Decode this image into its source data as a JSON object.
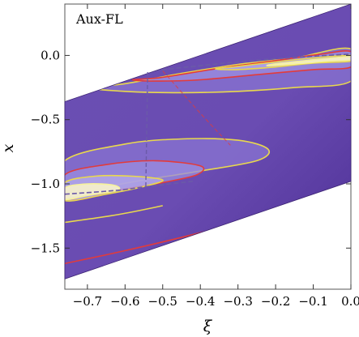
{
  "chart_data": {
    "type": "contour",
    "panel_label": "Aux-FL",
    "xlabel": "ξ",
    "ylabel": "x",
    "xlim": [
      -0.76,
      0.0
    ],
    "ylim": [
      -1.82,
      0.4
    ],
    "x_ticks": [
      "−0.7",
      "−0.6",
      "−0.5",
      "−0.4",
      "−0.3",
      "−0.2",
      "−0.1",
      "0.0"
    ],
    "x_tick_values": [
      -0.7,
      -0.6,
      -0.5,
      -0.4,
      -0.3,
      -0.2,
      -0.1,
      0.0
    ],
    "y_ticks": [
      "0.0",
      "−0.5",
      "−1.0",
      "−1.5"
    ],
    "y_tick_values": [
      0.0,
      -0.5,
      -1.0,
      -1.5
    ],
    "domain_shift": 0.4,
    "ridges": [
      {
        "name": "upper",
        "axis": [
          [
            -0.56,
            -0.13
          ],
          [
            -0.3,
            -0.05
          ],
          [
            -0.12,
            -0.01
          ],
          [
            0.0,
            0.01
          ]
        ],
        "contours": [
          {
            "color": "#e9d84d",
            "points": [
              [
                -0.6,
                -0.22
              ],
              [
                -0.45,
                -0.14
              ],
              [
                -0.3,
                -0.07
              ],
              [
                -0.15,
                -0.02
              ],
              [
                0.0,
                0.05
              ],
              [
                0.0,
                -0.2
              ],
              [
                -0.15,
                -0.25
              ],
              [
                -0.3,
                -0.28
              ],
              [
                -0.45,
                -0.29
              ],
              [
                -0.6,
                -0.28
              ],
              [
                -0.7,
                -0.25
              ]
            ]
          },
          {
            "color": "#e23b3b",
            "points": [
              [
                -0.5,
                -0.17
              ],
              [
                -0.35,
                -0.1
              ],
              [
                -0.2,
                -0.04
              ],
              [
                -0.08,
                0.01
              ],
              [
                0.0,
                0.03
              ],
              [
                0.0,
                -0.09
              ],
              [
                -0.1,
                -0.11
              ],
              [
                -0.25,
                -0.15
              ],
              [
                -0.4,
                -0.19
              ],
              [
                -0.52,
                -0.2
              ],
              [
                -0.58,
                -0.19
              ]
            ]
          },
          {
            "color": "#e9d84d",
            "points": [
              [
                -0.3,
                -0.085
              ],
              [
                -0.2,
                -0.05
              ],
              [
                -0.1,
                -0.02
              ],
              [
                0.0,
                0.0
              ],
              [
                0.0,
                -0.045
              ],
              [
                -0.1,
                -0.06
              ],
              [
                -0.2,
                -0.09
              ],
              [
                -0.3,
                -0.11
              ],
              [
                -0.36,
                -0.105
              ]
            ]
          },
          {
            "color": "#f6f29a",
            "points": [
              [
                -0.2,
                -0.065
              ],
              [
                -0.12,
                -0.04
              ],
              [
                -0.05,
                -0.02
              ],
              [
                0.0,
                -0.01
              ],
              [
                0.0,
                -0.035
              ],
              [
                -0.06,
                -0.045
              ],
              [
                -0.14,
                -0.065
              ],
              [
                -0.22,
                -0.08
              ]
            ]
          }
        ]
      },
      {
        "name": "lower",
        "axis": [
          [
            -0.76,
            -1.08
          ],
          [
            -0.62,
            -1.05
          ],
          [
            -0.54,
            -1.02
          ],
          [
            -0.42,
            -0.98
          ]
        ],
        "contours": [
          {
            "color": "#e9d84d",
            "points": [
              [
                -0.76,
                -0.82
              ],
              [
                -0.6,
                -0.69
              ],
              [
                -0.45,
                -0.65
              ],
              [
                -0.3,
                -0.66
              ],
              [
                -0.22,
                -0.73
              ],
              [
                -0.25,
                -0.82
              ],
              [
                -0.4,
                -0.9
              ],
              [
                -0.55,
                -0.97
              ],
              [
                -0.7,
                -1.05
              ],
              [
                -0.76,
                -1.1
              ]
            ]
          },
          {
            "color": "#e23b3b",
            "points": [
              [
                -0.76,
                -0.93
              ],
              [
                -0.65,
                -0.85
              ],
              [
                -0.52,
                -0.82
              ],
              [
                -0.4,
                -0.86
              ],
              [
                -0.41,
                -0.93
              ],
              [
                -0.5,
                -0.99
              ],
              [
                -0.62,
                -1.05
              ],
              [
                -0.74,
                -1.12
              ]
            ]
          },
          {
            "color": "#e9d84d",
            "points": [
              [
                -0.76,
                -0.99
              ],
              [
                -0.68,
                -0.94
              ],
              [
                -0.58,
                -0.94
              ],
              [
                -0.5,
                -0.97
              ],
              [
                -0.55,
                -1.02
              ],
              [
                -0.65,
                -1.08
              ],
              [
                -0.76,
                -1.13
              ]
            ]
          },
          {
            "color": "#f6f29a",
            "points": [
              [
                -0.76,
                -1.03
              ],
              [
                -0.7,
                -1.0
              ],
              [
                -0.63,
                -1.01
              ],
              [
                -0.62,
                -1.05
              ],
              [
                -0.7,
                -1.09
              ],
              [
                -0.76,
                -1.12
              ]
            ]
          }
        ]
      }
    ],
    "connector": {
      "color": "#6b5aa8",
      "points": [
        [
          -0.54,
          -0.13
        ],
        [
          -0.545,
          -1.03
        ]
      ]
    },
    "extra_contours": [
      {
        "color": "#e23b3b",
        "points": [
          [
            -0.76,
            -1.62
          ],
          [
            -0.6,
            -1.52
          ],
          [
            -0.4,
            -1.38
          ],
          [
            -0.2,
            -1.22
          ],
          [
            0.0,
            -1.08
          ]
        ]
      },
      {
        "color": "#e9d84d",
        "points": [
          [
            -0.76,
            -1.3
          ],
          [
            -0.62,
            -1.24
          ],
          [
            -0.5,
            -1.17
          ]
        ]
      },
      {
        "color": "#e23b3b",
        "points": [
          [
            -0.5,
            -0.12
          ],
          [
            -0.4,
            -0.45
          ],
          [
            -0.32,
            -0.7
          ]
        ]
      }
    ],
    "colors": {
      "background_dark": "#5a39a1",
      "background_mid": "#7255b8",
      "high_light": "#9c8fe0",
      "peak": "#fff6d8",
      "contour_red": "#e23b3b",
      "contour_yellow": "#e9d84d"
    },
    "grid": false
  }
}
